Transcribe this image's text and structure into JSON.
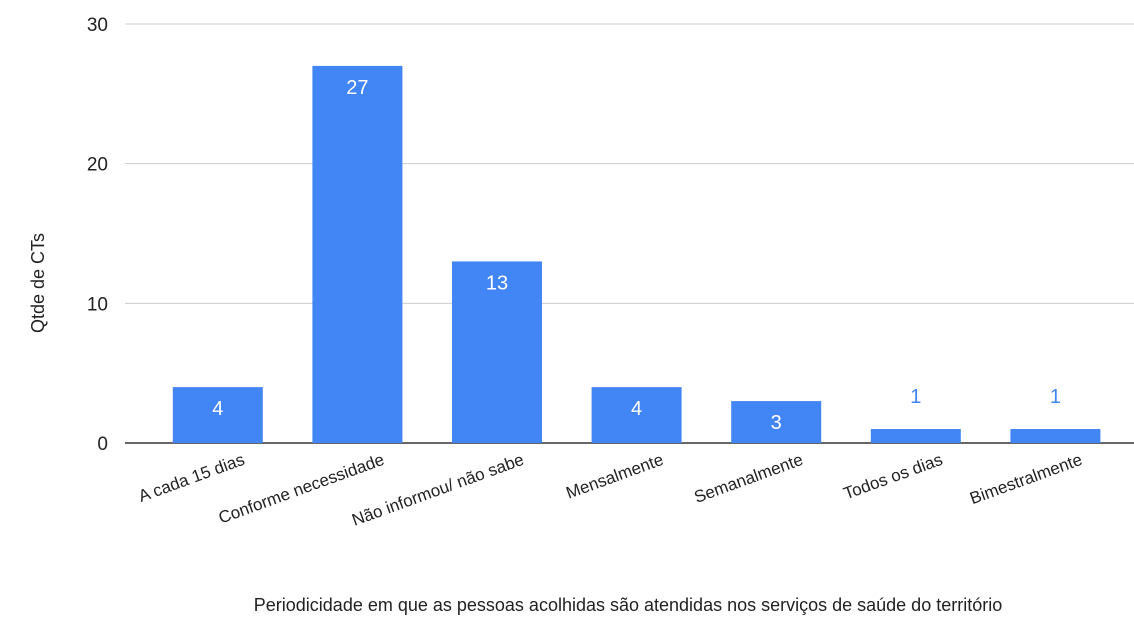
{
  "chart_data": {
    "type": "bar",
    "title": "",
    "xlabel": "Periodicidade em que as pessoas acolhidas são atendidas nos serviços de saúde do território",
    "ylabel": "Qtde de CTs",
    "categories": [
      "A cada 15 dias",
      "Conforme necessidade",
      "Não informou/ não sabe",
      "Mensalmente",
      "Semanalmente",
      "Todos os dias",
      "Bimestralmente"
    ],
    "values": [
      4,
      27,
      13,
      4,
      3,
      1,
      1
    ],
    "data_labels": [
      "4",
      "27",
      "13",
      "4",
      "3",
      "1",
      "1"
    ],
    "ylim": [
      0,
      30
    ],
    "yticks": [
      0,
      10,
      20,
      30
    ],
    "ytick_labels": [
      "0",
      "10",
      "20",
      "30"
    ],
    "grid": true,
    "legend": "none",
    "colors": {
      "bar": "#4285f4",
      "label_inside": "#ffffff",
      "label_outside": "#4285f4",
      "grid": "#cccccc",
      "axis": "#333333",
      "text": "#222222"
    }
  }
}
